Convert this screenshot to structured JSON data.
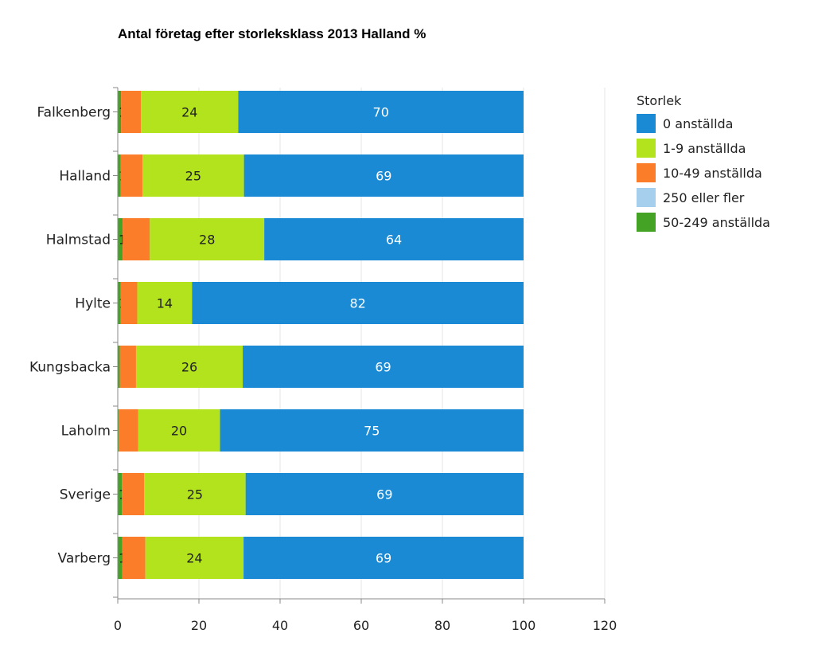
{
  "chart_data": {
    "type": "bar",
    "orientation": "horizontal",
    "stacked": true,
    "title": "Antal företag efter storleksklass 2013 Halland %",
    "xlabel": "",
    "ylabel": "",
    "xlim": [
      0,
      120
    ],
    "x_ticks": [
      "0",
      "20",
      "40",
      "60",
      "80",
      "100",
      "120"
    ],
    "grid": "vertical",
    "legend_position": "right",
    "legend_title": "Storlek",
    "legend": [
      {
        "name": "0 anställda",
        "color": "#1a8ad4"
      },
      {
        "name": "1-9 anställda",
        "color": "#b3e31d"
      },
      {
        "name": "10-49 anställda",
        "color": "#fb7d2a"
      },
      {
        "name": "250 eller fler",
        "color": "#a6cfee"
      },
      {
        "name": "50-249 anställda",
        "color": "#44a325"
      }
    ],
    "categories": [
      "Falkenberg",
      "Halland",
      "Halmstad",
      "Hylte",
      "Kungsbacka",
      "Laholm",
      "Sverige",
      "Varberg"
    ],
    "series": [
      {
        "name": "50-249 anställda",
        "color": "#44a325",
        "values": [
          0.8,
          0.7,
          1.2,
          0.7,
          0.5,
          0.2,
          1.0,
          1.1
        ],
        "labels": [
          "1",
          "1",
          "1",
          "1",
          "1",
          "0",
          "1",
          "1"
        ]
      },
      {
        "name": "10-49 anställda",
        "color": "#fb7d2a",
        "values": [
          4.9,
          5.4,
          6.7,
          4.1,
          4.0,
          4.8,
          5.5,
          5.7
        ],
        "labels": [
          "",
          "",
          "",
          "",
          "",
          "",
          "",
          ""
        ]
      },
      {
        "name": "250 eller fler",
        "color": "#a6cfee",
        "values": [
          0,
          0,
          0,
          0,
          0,
          0,
          0,
          0
        ],
        "labels": [
          "",
          "",
          "",
          "",
          "",
          "",
          "",
          ""
        ]
      },
      {
        "name": "1-9 anställda",
        "color": "#b3e31d",
        "values": [
          24,
          25,
          28.2,
          13.5,
          26.3,
          20.2,
          25,
          24.2
        ],
        "labels": [
          "24",
          "25",
          "28",
          "14",
          "26",
          "20",
          "25",
          "24"
        ]
      },
      {
        "name": "0 anställda",
        "color": "#1a8ad4",
        "values": [
          70.3,
          68.9,
          63.9,
          81.7,
          69.2,
          74.8,
          68.5,
          69
        ],
        "labels": [
          "70",
          "69",
          "64",
          "82",
          "69",
          "75",
          "69",
          "69"
        ]
      }
    ]
  }
}
